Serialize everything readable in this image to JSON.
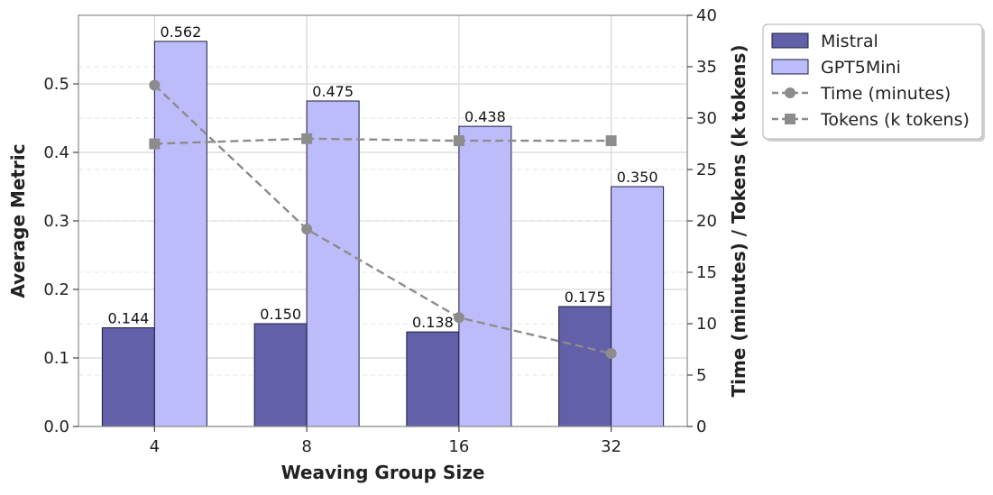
{
  "chart_data": {
    "type": "bar",
    "title": "",
    "xlabel": "Weaving Group Size",
    "ylabel": "Average Metric",
    "y2label": "Time (minutes) / Tokens (k tokens)",
    "categories": [
      "4",
      "8",
      "16",
      "32"
    ],
    "ylim": [
      0,
      0.6
    ],
    "yticks": [
      "0.0",
      "0.1",
      "0.2",
      "0.3",
      "0.4",
      "0.5"
    ],
    "y2lim": [
      0,
      40
    ],
    "y2ticks": [
      "0",
      "5",
      "10",
      "15",
      "20",
      "25",
      "30",
      "35",
      "40"
    ],
    "grid": true,
    "legend_position": "outside-right-top",
    "series": [
      {
        "name": "Mistral",
        "kind": "bar",
        "axis": "left",
        "color": "#6160a8",
        "values": [
          0.144,
          0.15,
          0.138,
          0.175
        ],
        "labels": [
          "0.144",
          "0.150",
          "0.138",
          "0.175"
        ]
      },
      {
        "name": "GPT5Mini",
        "kind": "bar",
        "axis": "left",
        "color": "#bcbcfb",
        "values": [
          0.562,
          0.475,
          0.438,
          0.35
        ],
        "labels": [
          "0.562",
          "0.475",
          "0.438",
          "0.350"
        ]
      },
      {
        "name": "Time (minutes)",
        "kind": "line",
        "axis": "right",
        "marker": "circle",
        "color": "#8c8c8c",
        "values": [
          33.2,
          19.2,
          10.6,
          7.1
        ]
      },
      {
        "name": "Tokens (k tokens)",
        "kind": "line",
        "axis": "right",
        "marker": "square",
        "color": "#8c8c8c",
        "values": [
          27.5,
          28.0,
          27.8,
          27.8
        ]
      }
    ]
  }
}
